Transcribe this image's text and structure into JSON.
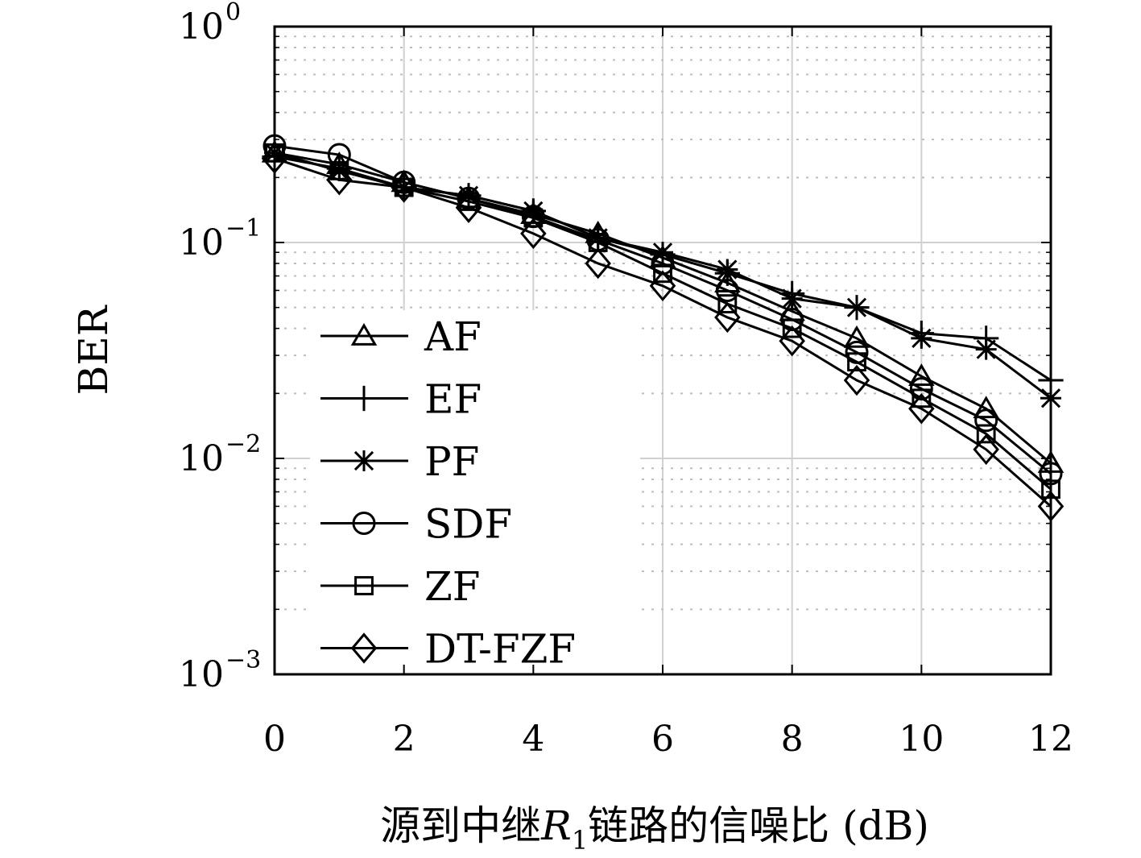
{
  "chart_data": {
    "type": "line",
    "xlabel_parts": {
      "prefix": "源到中继",
      "var": "R",
      "sub": "1",
      "suffix": "链路的信噪比 (dB)"
    },
    "ylabel": "BER",
    "xlim": [
      0,
      12
    ],
    "ylim": [
      0.001,
      1
    ],
    "yscale": "log",
    "grid": true,
    "legend_position": "lower-left",
    "x_ticks": [
      "0",
      "2",
      "4",
      "6",
      "8",
      "10",
      "12"
    ],
    "y_ticks": [
      {
        "base": "10",
        "exp": "0"
      },
      {
        "base": "10",
        "exp": "−1"
      },
      {
        "base": "10",
        "exp": "−2"
      },
      {
        "base": "10",
        "exp": "−3"
      }
    ],
    "x": [
      0,
      1,
      2,
      3,
      4,
      5,
      6,
      7,
      8,
      9,
      10,
      11,
      12
    ],
    "series": [
      {
        "name": "AF",
        "marker": "triangle",
        "values": [
          0.26,
          0.23,
          0.19,
          0.16,
          0.135,
          0.11,
          0.085,
          0.065,
          0.048,
          0.036,
          0.024,
          0.017,
          0.0095
        ]
      },
      {
        "name": "EF",
        "marker": "plus",
        "values": [
          0.25,
          0.22,
          0.18,
          0.165,
          0.14,
          0.105,
          0.088,
          0.072,
          0.058,
          0.05,
          0.038,
          0.036,
          0.023
        ]
      },
      {
        "name": "PF",
        "marker": "star",
        "values": [
          0.26,
          0.215,
          0.18,
          0.165,
          0.14,
          0.105,
          0.09,
          0.075,
          0.055,
          0.05,
          0.036,
          0.032,
          0.019
        ]
      },
      {
        "name": "SDF",
        "marker": "circle",
        "values": [
          0.28,
          0.255,
          0.19,
          0.16,
          0.132,
          0.103,
          0.08,
          0.06,
          0.044,
          0.031,
          0.021,
          0.015,
          0.0085
        ]
      },
      {
        "name": "ZF",
        "marker": "square",
        "values": [
          0.26,
          0.215,
          0.18,
          0.155,
          0.13,
          0.1,
          0.072,
          0.052,
          0.04,
          0.028,
          0.019,
          0.013,
          0.0072
        ]
      },
      {
        "name": "DT-FZF",
        "marker": "diamond",
        "values": [
          0.245,
          0.195,
          0.18,
          0.145,
          0.11,
          0.08,
          0.063,
          0.045,
          0.035,
          0.023,
          0.017,
          0.011,
          0.006
        ]
      }
    ]
  }
}
